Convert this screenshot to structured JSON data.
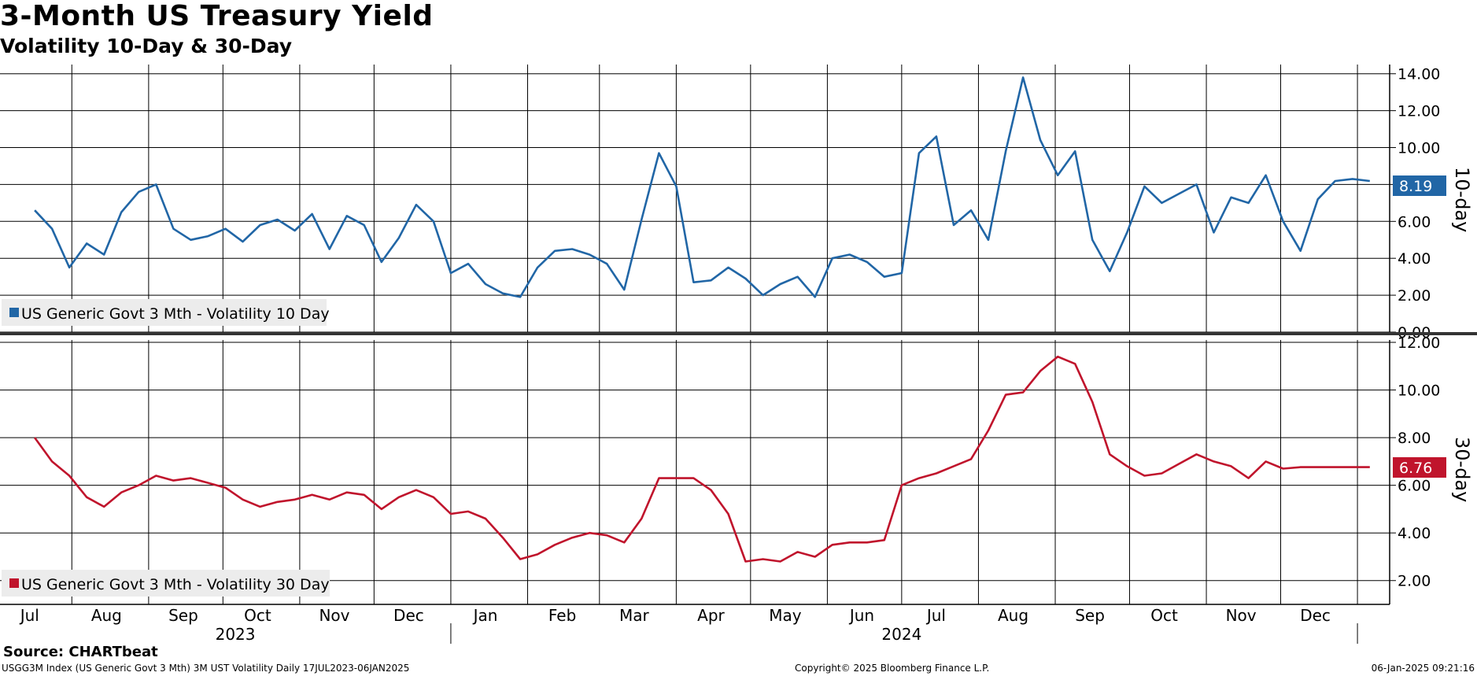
{
  "header": {
    "title": "3-Month US Treasury Yield",
    "subtitle": "Volatility 10-Day & 30-Day"
  },
  "footer": {
    "source": "Source: CHARTbeat",
    "index_note": "USGG3M Index (US Generic Govt 3 Mth) 3M UST Volatility  Daily 17JUL2023-06JAN2025",
    "copyright": "Copyright© 2025 Bloomberg Finance L.P.",
    "timestamp": "06-Jan-2025 09:21:16"
  },
  "colors": {
    "ten_day": "#2166a6",
    "thirty_day": "#c0142c",
    "grid": "#000000",
    "legend_bg": "#ececec"
  },
  "chart_data": [
    {
      "type": "line",
      "panel": "top",
      "axis_title": "10-day",
      "legend": "US Generic Govt 3 Mth - Volatility 10 Day",
      "ylim": [
        0,
        14.5
      ],
      "yticks": [
        "0.00",
        "2.00",
        "4.00",
        "6.00",
        "8.00",
        "10.00",
        "12.00",
        "14.00"
      ],
      "last_value": "8.19",
      "x": [
        "2023-07-17",
        "2023-07-24",
        "2023-07-31",
        "2023-08-07",
        "2023-08-14",
        "2023-08-21",
        "2023-08-28",
        "2023-09-04",
        "2023-09-11",
        "2023-09-18",
        "2023-09-25",
        "2023-10-02",
        "2023-10-09",
        "2023-10-16",
        "2023-10-23",
        "2023-10-30",
        "2023-11-06",
        "2023-11-13",
        "2023-11-20",
        "2023-11-27",
        "2023-12-04",
        "2023-12-11",
        "2023-12-18",
        "2023-12-25",
        "2024-01-01",
        "2024-01-08",
        "2024-01-15",
        "2024-01-22",
        "2024-01-29",
        "2024-02-05",
        "2024-02-12",
        "2024-02-19",
        "2024-02-26",
        "2024-03-04",
        "2024-03-11",
        "2024-03-18",
        "2024-03-25",
        "2024-04-01",
        "2024-04-08",
        "2024-04-15",
        "2024-04-22",
        "2024-04-29",
        "2024-05-06",
        "2024-05-13",
        "2024-05-20",
        "2024-05-27",
        "2024-06-03",
        "2024-06-10",
        "2024-06-17",
        "2024-06-24",
        "2024-07-01",
        "2024-07-08",
        "2024-07-15",
        "2024-07-22",
        "2024-07-29",
        "2024-08-05",
        "2024-08-12",
        "2024-08-19",
        "2024-08-26",
        "2024-09-02",
        "2024-09-09",
        "2024-09-16",
        "2024-09-23",
        "2024-09-30",
        "2024-10-07",
        "2024-10-14",
        "2024-10-21",
        "2024-10-28",
        "2024-11-04",
        "2024-11-11",
        "2024-11-18",
        "2024-11-25",
        "2024-12-02",
        "2024-12-09",
        "2024-12-16",
        "2024-12-23",
        "2024-12-30",
        "2025-01-06"
      ],
      "values": [
        6.6,
        5.6,
        3.5,
        4.8,
        4.2,
        6.5,
        7.6,
        8.0,
        5.6,
        5.0,
        5.2,
        5.6,
        4.9,
        5.8,
        6.1,
        5.5,
        6.4,
        4.5,
        6.3,
        5.8,
        3.8,
        5.1,
        6.9,
        6.0,
        3.2,
        3.7,
        2.6,
        2.1,
        1.9,
        3.5,
        4.4,
        4.5,
        4.2,
        3.7,
        2.3,
        6.1,
        9.7,
        7.9,
        2.7,
        2.8,
        3.5,
        2.9,
        2.0,
        2.6,
        3.0,
        1.9,
        4.0,
        4.2,
        3.8,
        3.0,
        3.2,
        9.7,
        10.6,
        5.8,
        6.6,
        5.0,
        9.8,
        13.8,
        10.4,
        8.5,
        9.8,
        5.0,
        3.3,
        5.4,
        7.9,
        7.0,
        7.5,
        8.0,
        5.4,
        7.3,
        7.0,
        8.5,
        6.0,
        4.4,
        7.2,
        8.19,
        8.3,
        8.19
      ]
    },
    {
      "type": "line",
      "panel": "bottom",
      "axis_title": "30-day",
      "legend": "US Generic Govt 3 Mth - Volatility 30 Day",
      "ylim": [
        1.0,
        12.1
      ],
      "yticks": [
        "2.00",
        "4.00",
        "6.00",
        "8.00",
        "10.00",
        "12.00"
      ],
      "last_value": "6.76",
      "x": [
        "2023-07-17",
        "2023-07-24",
        "2023-07-31",
        "2023-08-07",
        "2023-08-14",
        "2023-08-21",
        "2023-08-28",
        "2023-09-04",
        "2023-09-11",
        "2023-09-18",
        "2023-09-25",
        "2023-10-02",
        "2023-10-09",
        "2023-10-16",
        "2023-10-23",
        "2023-10-30",
        "2023-11-06",
        "2023-11-13",
        "2023-11-20",
        "2023-11-27",
        "2023-12-04",
        "2023-12-11",
        "2023-12-18",
        "2023-12-25",
        "2024-01-01",
        "2024-01-08",
        "2024-01-15",
        "2024-01-22",
        "2024-01-29",
        "2024-02-05",
        "2024-02-12",
        "2024-02-19",
        "2024-02-26",
        "2024-03-04",
        "2024-03-11",
        "2024-03-18",
        "2024-03-25",
        "2024-04-01",
        "2024-04-08",
        "2024-04-15",
        "2024-04-22",
        "2024-04-29",
        "2024-05-06",
        "2024-05-13",
        "2024-05-20",
        "2024-05-27",
        "2024-06-03",
        "2024-06-10",
        "2024-06-17",
        "2024-06-24",
        "2024-07-01",
        "2024-07-08",
        "2024-07-15",
        "2024-07-22",
        "2024-07-29",
        "2024-08-05",
        "2024-08-12",
        "2024-08-19",
        "2024-08-26",
        "2024-09-02",
        "2024-09-09",
        "2024-09-16",
        "2024-09-23",
        "2024-09-30",
        "2024-10-07",
        "2024-10-14",
        "2024-10-21",
        "2024-10-28",
        "2024-11-04",
        "2024-11-11",
        "2024-11-18",
        "2024-11-25",
        "2024-12-02",
        "2024-12-09",
        "2024-12-16",
        "2024-12-23",
        "2024-12-30",
        "2025-01-06"
      ],
      "values": [
        8.0,
        7.0,
        6.4,
        5.5,
        5.1,
        5.7,
        6.0,
        6.4,
        6.2,
        6.3,
        6.1,
        5.9,
        5.4,
        5.1,
        5.3,
        5.4,
        5.6,
        5.4,
        5.7,
        5.6,
        5.0,
        5.5,
        5.8,
        5.5,
        4.8,
        4.9,
        4.6,
        3.8,
        2.9,
        3.1,
        3.5,
        3.8,
        4.0,
        3.9,
        3.6,
        4.6,
        6.3,
        6.3,
        6.3,
        5.8,
        4.8,
        2.8,
        2.9,
        2.8,
        3.2,
        3.0,
        3.5,
        3.6,
        3.6,
        3.7,
        6.0,
        6.3,
        6.5,
        6.8,
        7.1,
        8.3,
        9.8,
        9.9,
        10.8,
        11.4,
        11.1,
        9.5,
        7.3,
        6.8,
        6.4,
        6.5,
        6.9,
        7.3,
        7.0,
        6.8,
        6.3,
        7.0,
        6.7,
        6.76,
        6.76,
        6.76,
        6.76,
        6.76
      ]
    }
  ],
  "x_axis": {
    "months": [
      {
        "label": "Jul",
        "date": "2023-07-15"
      },
      {
        "label": "Aug",
        "date": "2023-08-15"
      },
      {
        "label": "Sep",
        "date": "2023-09-15"
      },
      {
        "label": "Oct",
        "date": "2023-10-15"
      },
      {
        "label": "Nov",
        "date": "2023-11-15"
      },
      {
        "label": "Dec",
        "date": "2023-12-15"
      },
      {
        "label": "Jan",
        "date": "2024-01-15"
      },
      {
        "label": "Feb",
        "date": "2024-02-15"
      },
      {
        "label": "Mar",
        "date": "2024-03-15"
      },
      {
        "label": "Apr",
        "date": "2024-04-15"
      },
      {
        "label": "May",
        "date": "2024-05-15"
      },
      {
        "label": "Jun",
        "date": "2024-06-15"
      },
      {
        "label": "Jul",
        "date": "2024-07-15"
      },
      {
        "label": "Aug",
        "date": "2024-08-15"
      },
      {
        "label": "Sep",
        "date": "2024-09-15"
      },
      {
        "label": "Oct",
        "date": "2024-10-15"
      },
      {
        "label": "Nov",
        "date": "2024-11-15"
      },
      {
        "label": "Dec",
        "date": "2024-12-15"
      }
    ],
    "gridlines": [
      "2023-08-01",
      "2023-09-01",
      "2023-10-01",
      "2023-11-01",
      "2023-12-01",
      "2024-01-01",
      "2024-02-01",
      "2024-03-01",
      "2024-04-01",
      "2024-05-01",
      "2024-06-01",
      "2024-07-01",
      "2024-08-01",
      "2024-09-01",
      "2024-10-01",
      "2024-11-01",
      "2024-12-01",
      "2025-01-01"
    ],
    "years": [
      {
        "label": "2023",
        "date": "2023-10-06"
      },
      {
        "label": "2024",
        "date": "2024-07-01"
      }
    ],
    "year_dividers": [
      "2024-01-01",
      "2025-01-01"
    ],
    "range": [
      "2023-07-03",
      "2025-01-14"
    ]
  }
}
